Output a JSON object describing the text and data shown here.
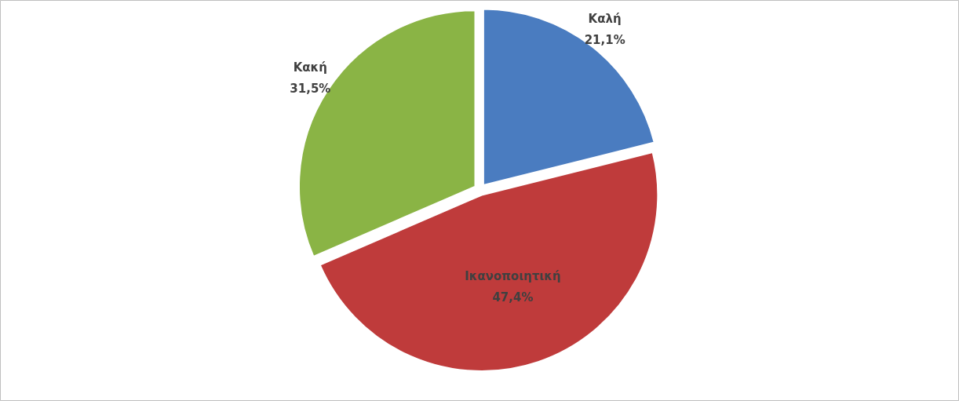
{
  "chart_data": {
    "type": "pie",
    "categories": [
      "Καλή",
      "Ικανοποιητική",
      "Κακή"
    ],
    "values": [
      21.1,
      47.4,
      31.5
    ],
    "colors": [
      "#4a7cc0",
      "#bf3b3b",
      "#8ab445"
    ],
    "value_labels": [
      "21,1%",
      "47,4%",
      "31,5%"
    ],
    "legend": false
  }
}
